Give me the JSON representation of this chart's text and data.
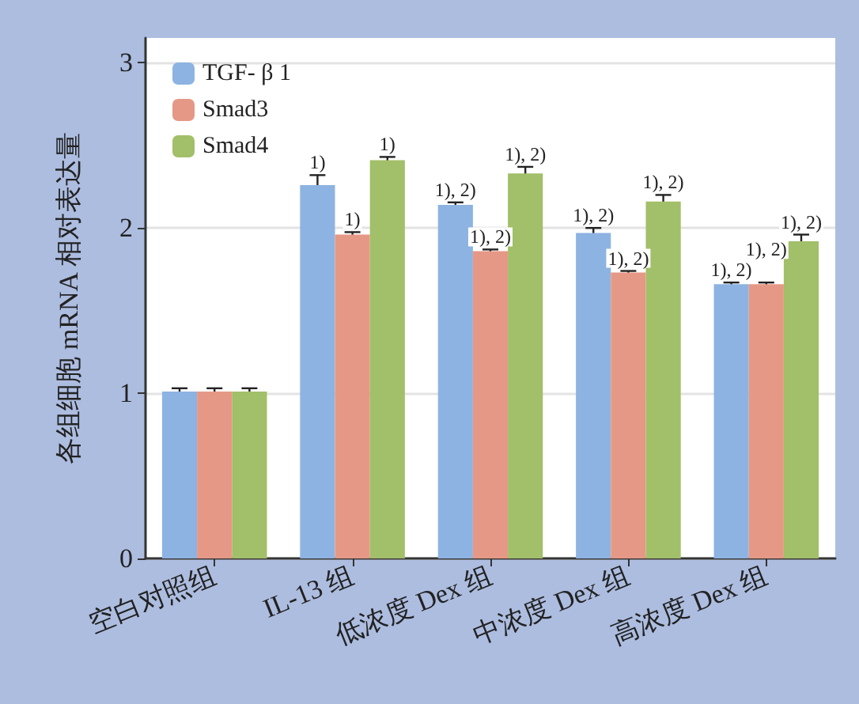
{
  "chart_data": {
    "type": "bar",
    "ylabel": "各组细胞 mRNA 相对表达量",
    "categories": [
      "空白对照组",
      "IL-13 组",
      "低浓度 Dex 组",
      "中浓度 Dex 组",
      "高浓度 Dex 组"
    ],
    "series": [
      {
        "name": "TGF- β 1",
        "color": "#8db3e2",
        "values": [
          1.01,
          2.26,
          2.14,
          1.97,
          1.66
        ],
        "errors": [
          0.02,
          0.06,
          0.015,
          0.03,
          0.01
        ]
      },
      {
        "name": "Smad3",
        "color": "#e69886",
        "values": [
          1.01,
          1.96,
          1.86,
          1.73,
          1.66
        ],
        "errors": [
          0.02,
          0.015,
          0.01,
          0.01,
          0.01
        ]
      },
      {
        "name": "Smad4",
        "color": "#a2bf69",
        "values": [
          1.01,
          2.41,
          2.33,
          2.16,
          1.92
        ],
        "errors": [
          0.02,
          0.02,
          0.04,
          0.04,
          0.04
        ]
      }
    ],
    "annotations": [
      "1)",
      "1)",
      "1)",
      "1), 2)",
      "1), 2)",
      "1), 2)",
      "1), 2)",
      "1), 2)",
      "1), 2)",
      "1), 2)",
      "1), 2)",
      "1), 2)"
    ],
    "ylim": [
      0,
      3.15
    ],
    "yticks": [
      0,
      1,
      2,
      3
    ],
    "grid": "y",
    "legend": "top left"
  }
}
